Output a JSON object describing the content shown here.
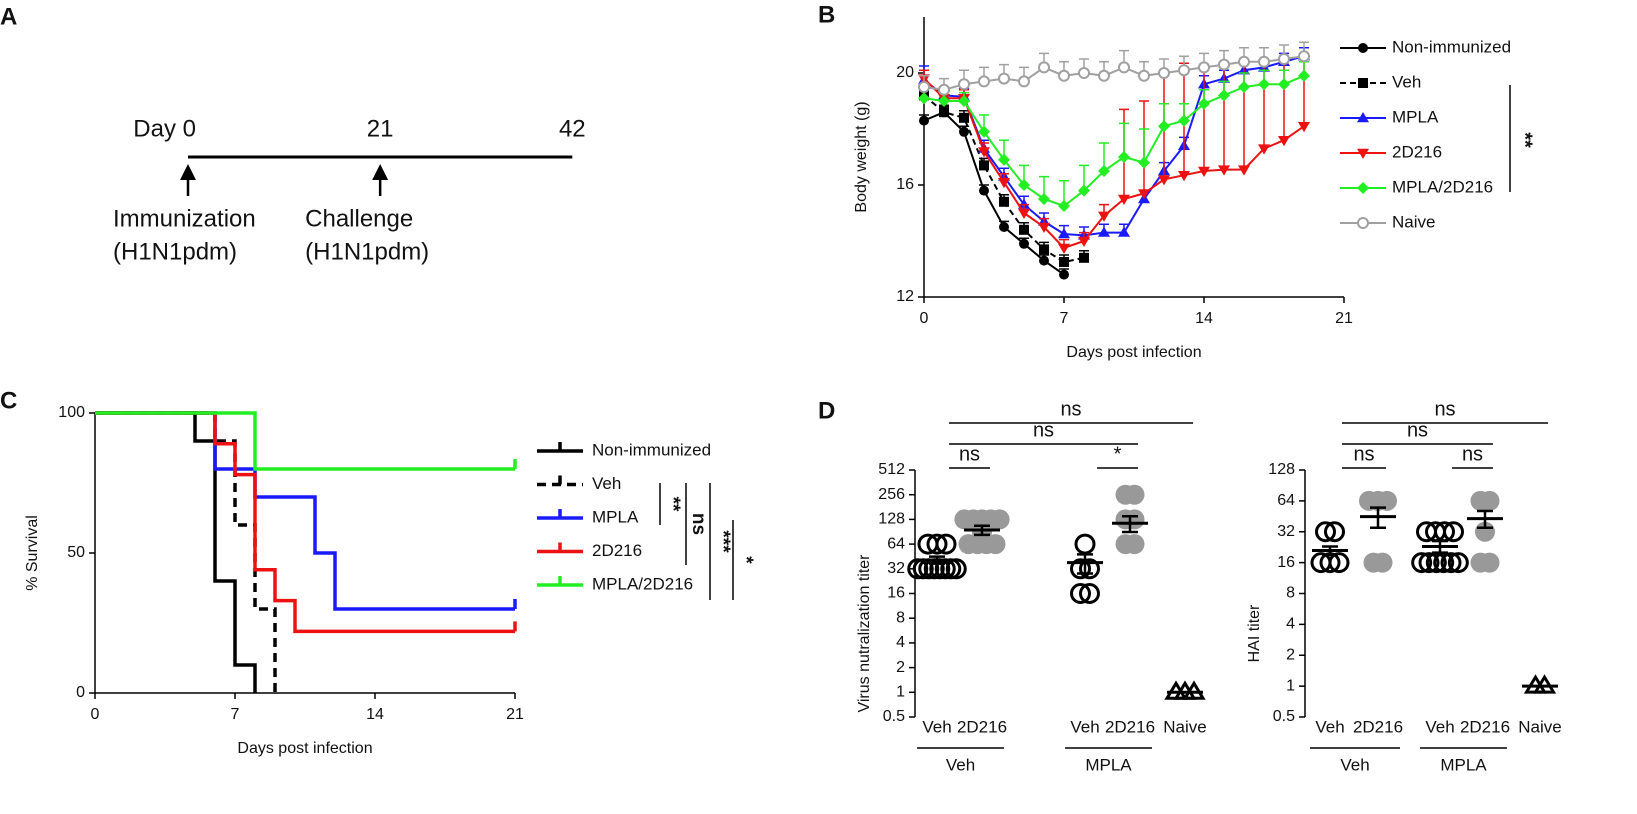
{
  "timeline": {
    "panel": "A",
    "ticks": [
      {
        "value": 0,
        "label": "Day 0"
      },
      21,
      42
    ],
    "events": [
      {
        "day": 0,
        "label": "Immunization",
        "sublabel": "(H1N1pdm)"
      },
      {
        "day": 21,
        "label": "Challenge",
        "sublabel": "(H1N1pdm)"
      }
    ]
  },
  "chart_data": [
    {
      "panel": "B",
      "type": "line",
      "xlabel": "Days post infection",
      "ylabel": "Body weight (g)",
      "xlim": [
        0,
        21
      ],
      "xticks": [
        0,
        7,
        14,
        21
      ],
      "ylim": [
        12,
        22
      ],
      "yticks": [
        12,
        16,
        20
      ],
      "annotations": [
        "**"
      ],
      "series": [
        {
          "name": "Non-immunized",
          "color": "#000000",
          "marker": "circle",
          "x": [
            0,
            1,
            2,
            3,
            4,
            5,
            6,
            7
          ],
          "values": [
            18.3,
            18.6,
            17.9,
            15.8,
            14.5,
            13.9,
            13.3,
            12.8
          ],
          "errors": [
            0.2,
            0.2,
            0.2,
            0.2,
            0.2,
            0.2,
            0.2,
            0.2
          ]
        },
        {
          "name": "Veh",
          "color": "#000000",
          "marker": "square",
          "dashed": true,
          "x": [
            0,
            1,
            2,
            3,
            4,
            5,
            6,
            7,
            8
          ],
          "values": [
            19.2,
            18.6,
            18.4,
            16.7,
            15.4,
            14.4,
            13.7,
            13.25,
            13.4
          ],
          "errors": [
            0.3,
            0.25,
            0.25,
            0.25,
            0.25,
            0.25,
            0.25,
            0.25,
            0.25
          ]
        },
        {
          "name": "MPLA",
          "color": "#1a1aff",
          "marker": "triangle",
          "x": [
            0,
            1,
            2,
            3,
            4,
            5,
            6,
            7,
            8,
            9,
            10,
            11,
            12,
            13,
            14,
            15,
            16,
            17,
            18,
            19
          ],
          "values": [
            19.75,
            19.2,
            19.15,
            17.3,
            16.3,
            15.3,
            14.7,
            14.25,
            14.2,
            14.3,
            14.3,
            15.5,
            16.5,
            17.4,
            19.6,
            19.8,
            20.1,
            20.2,
            20.4,
            20.6
          ],
          "errors": [
            0.5,
            0.3,
            0.3,
            0.3,
            0.3,
            0.3,
            0.3,
            0.3,
            0.3,
            0.3,
            0.3,
            0.3,
            0.3,
            0.3,
            0.3,
            0.3,
            0.3,
            0.3,
            0.3,
            0.3
          ]
        },
        {
          "name": "2D216",
          "color": "#ee1111",
          "marker": "triangle-down",
          "x": [
            0,
            1,
            2,
            3,
            4,
            5,
            6,
            7,
            8,
            9,
            10,
            11,
            12,
            13,
            14,
            15,
            16,
            17,
            18,
            19
          ],
          "values": [
            19.8,
            19.1,
            19.1,
            17.2,
            16.1,
            15.0,
            14.5,
            13.75,
            14.0,
            14.9,
            15.5,
            15.7,
            16.2,
            16.35,
            16.5,
            16.55,
            16.55,
            17.3,
            17.6,
            18.1
          ],
          "errors": [
            0.3,
            0.3,
            0.3,
            0.3,
            0.3,
            0.3,
            0.3,
            0.3,
            0.3,
            0.4,
            3.2,
            3.3,
            3.9,
            4.0,
            3.8,
            3.7,
            3.85,
            3.1,
            2.9,
            2.5
          ]
        },
        {
          "name": "MPLA/2D216",
          "color": "#22ee22",
          "marker": "diamond",
          "x": [
            0,
            1,
            2,
            3,
            4,
            5,
            6,
            7,
            8,
            9,
            10,
            11,
            12,
            13,
            14,
            15,
            16,
            17,
            18,
            19
          ],
          "values": [
            19.1,
            19.0,
            19.0,
            17.9,
            16.9,
            16.0,
            15.5,
            15.25,
            15.8,
            16.5,
            17.0,
            16.8,
            18.1,
            18.3,
            18.9,
            19.2,
            19.5,
            19.6,
            19.6,
            19.9
          ],
          "errors": [
            0.3,
            0.3,
            0.3,
            0.6,
            0.7,
            0.7,
            0.8,
            0.9,
            0.9,
            1.0,
            1.2,
            1.2,
            0.8,
            0.6,
            0.5,
            0.5,
            0.5,
            0.5,
            0.5,
            0.5
          ]
        },
        {
          "name": "Naive",
          "color": "#a0a0a0",
          "marker": "open-circle",
          "x": [
            0,
            1,
            2,
            3,
            4,
            5,
            6,
            7,
            8,
            9,
            10,
            11,
            12,
            13,
            14,
            15,
            16,
            17,
            18,
            19
          ],
          "values": [
            19.5,
            19.4,
            19.6,
            19.7,
            19.8,
            19.7,
            20.2,
            19.9,
            20.0,
            19.9,
            20.2,
            19.9,
            20.0,
            20.1,
            20.2,
            20.3,
            20.4,
            20.4,
            20.5,
            20.6
          ],
          "errors": [
            0.4,
            0.4,
            0.5,
            0.5,
            0.5,
            0.5,
            0.5,
            0.5,
            0.5,
            0.5,
            0.6,
            0.5,
            0.5,
            0.5,
            0.5,
            0.5,
            0.5,
            0.5,
            0.5,
            0.5
          ]
        }
      ]
    },
    {
      "panel": "C",
      "type": "step",
      "xlabel": "Days post infection",
      "ylabel": "% Survival",
      "xlim": [
        0,
        21
      ],
      "xticks": [
        0,
        7,
        14,
        21
      ],
      "ylim": [
        0,
        100
      ],
      "yticks": [
        0,
        50,
        100
      ],
      "annotations": [
        "**",
        "ns",
        "***",
        "*"
      ],
      "series": [
        {
          "name": "Non-immunized",
          "color": "#000000",
          "x": [
            0,
            5,
            6,
            7,
            8
          ],
          "values": [
            100,
            90,
            40,
            10,
            0
          ]
        },
        {
          "name": "Veh",
          "color": "#000000",
          "dashed": true,
          "x": [
            0,
            6,
            7,
            8,
            9
          ],
          "values": [
            100,
            90,
            60,
            30,
            0
          ]
        },
        {
          "name": "MPLA",
          "color": "#1a1aff",
          "x": [
            0,
            6,
            8,
            11,
            12,
            21
          ],
          "values": [
            100,
            80,
            70,
            50,
            30,
            30
          ]
        },
        {
          "name": "2D216",
          "color": "#ee1111",
          "x": [
            0,
            6,
            7,
            8,
            9,
            10,
            21
          ],
          "values": [
            100,
            89,
            78,
            44,
            33,
            22,
            22
          ]
        },
        {
          "name": "MPLA/2D216",
          "color": "#22ee22",
          "x": [
            0,
            8,
            21
          ],
          "values": [
            100,
            80,
            80
          ]
        }
      ]
    },
    {
      "panel": "D",
      "type": "dot",
      "ylabel": "Virus nutralization titer",
      "yscale": "log2",
      "ylim": [
        0.5,
        512
      ],
      "yticks": [
        0.5,
        1,
        2,
        4,
        8,
        16,
        32,
        64,
        128,
        256,
        512
      ],
      "categories": [
        "Veh",
        "2D216",
        "Veh",
        "2D216",
        "Naive"
      ],
      "groups": [
        "Veh",
        "MPLA"
      ],
      "markers": [
        "open",
        "filled",
        "open",
        "filled",
        "triangle"
      ],
      "annotations": [
        "ns",
        "*",
        "ns",
        "ns"
      ],
      "points": [
        [
          32,
          32,
          32,
          32,
          32,
          32,
          32,
          32,
          64,
          64,
          64
        ],
        [
          64,
          64,
          64,
          64,
          90,
          128,
          128,
          128,
          128,
          128
        ],
        [
          16,
          16,
          32,
          32,
          64
        ],
        [
          64,
          64,
          128,
          128,
          256,
          256
        ],
        [
          1,
          1,
          1
        ]
      ],
      "means": [
        41,
        95,
        38,
        115,
        1
      ],
      "errors": [
        4,
        12,
        10,
        25,
        0
      ]
    },
    {
      "type": "dot",
      "ylabel": "HAI titer",
      "yscale": "log2",
      "ylim": [
        0.5,
        128
      ],
      "yticks": [
        0.5,
        1,
        2,
        4,
        8,
        16,
        32,
        64,
        128
      ],
      "categories": [
        "Veh",
        "2D216",
        "Veh",
        "2D216",
        "Naive"
      ],
      "groups": [
        "Veh",
        "MPLA"
      ],
      "markers": [
        "open",
        "filled",
        "open",
        "filled",
        "triangle"
      ],
      "annotations": [
        "ns",
        "ns",
        "ns",
        "ns"
      ],
      "points": [
        [
          16,
          16,
          16,
          32,
          32
        ],
        [
          16,
          16,
          64,
          64,
          64
        ],
        [
          16,
          16,
          16,
          16,
          16,
          16,
          32,
          32,
          32,
          32
        ],
        [
          16,
          16,
          32,
          64,
          64
        ],
        [
          1,
          1
        ]
      ],
      "means": [
        21,
        45,
        23,
        43,
        1
      ],
      "errors": [
        2,
        10,
        3,
        8,
        0
      ]
    }
  ]
}
